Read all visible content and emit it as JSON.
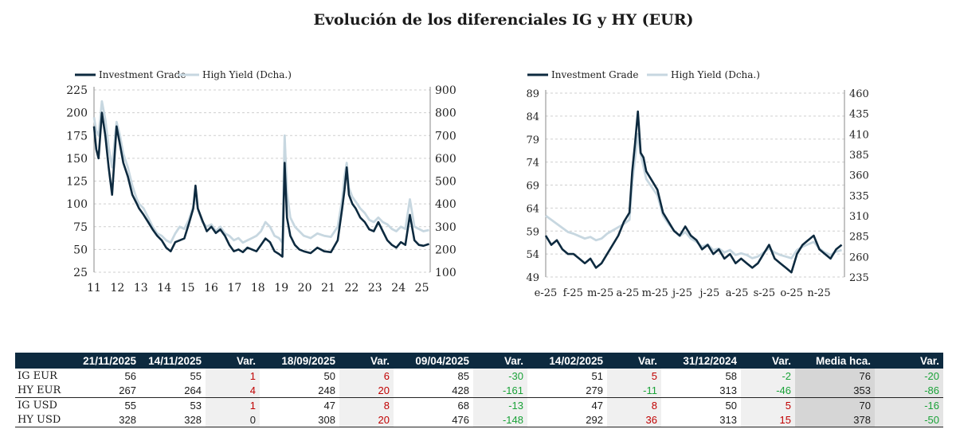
{
  "title": "Evolución de los diferenciales IG y HY (EUR)",
  "colors": {
    "ig": "#0d2a3f",
    "hy": "#c7d7e0",
    "grid": "#cfcfcf",
    "header_bg": "#0d2a3f",
    "positive": "#c00000",
    "negative": "#1aa238"
  },
  "chart_data": [
    {
      "type": "line",
      "legend": [
        "Investment Grade",
        "High Yield (Dcha.)"
      ],
      "legend_position": "top-left",
      "x_ticks": [
        "11",
        "12",
        "13",
        "14",
        "15",
        "16",
        "17",
        "18",
        "19",
        "20",
        "21",
        "22",
        "23",
        "24",
        "25"
      ],
      "xlim": [
        2011,
        2025.9
      ],
      "y_left": {
        "ticks": [
          "225",
          "200",
          "175",
          "150",
          "125",
          "100",
          "75",
          "50",
          "25"
        ],
        "ylim": [
          25,
          225
        ]
      },
      "y_right": {
        "ticks": [
          "900",
          "800",
          "700",
          "600",
          "500",
          "400",
          "300",
          "200",
          "100"
        ],
        "ylim": [
          100,
          900
        ]
      },
      "grid": true,
      "series": [
        {
          "name": "Investment Grade",
          "axis": "left",
          "color": "#0d2a3f",
          "x": [
            2011.0,
            2011.1,
            2011.2,
            2011.35,
            2011.5,
            2011.65,
            2011.8,
            2012.0,
            2012.15,
            2012.3,
            2012.5,
            2012.7,
            2012.9,
            2013.0,
            2013.2,
            2013.4,
            2013.6,
            2013.8,
            2014.0,
            2014.2,
            2014.4,
            2014.6,
            2014.8,
            2015.0,
            2015.2,
            2015.4,
            2015.5,
            2015.6,
            2015.8,
            2016.0,
            2016.2,
            2016.4,
            2016.6,
            2016.8,
            2017.0,
            2017.2,
            2017.4,
            2017.6,
            2017.8,
            2018.0,
            2018.2,
            2018.4,
            2018.6,
            2018.8,
            2019.0,
            2019.2,
            2019.35,
            2019.45,
            2019.55,
            2019.7,
            2019.9,
            2020.1,
            2020.3,
            2020.6,
            2020.9,
            2021.2,
            2021.5,
            2021.8,
            2022.0,
            2022.1,
            2022.2,
            2022.3,
            2022.45,
            2022.6,
            2022.8,
            2023.0,
            2023.2,
            2023.4,
            2023.6,
            2023.8,
            2024.0,
            2024.2,
            2024.4,
            2024.6,
            2024.8,
            2025.0,
            2025.2,
            2025.4,
            2025.6,
            2025.85
          ],
          "values": [
            185,
            160,
            150,
            200,
            175,
            140,
            110,
            185,
            165,
            145,
            130,
            110,
            100,
            95,
            88,
            80,
            72,
            65,
            60,
            52,
            48,
            58,
            60,
            62,
            78,
            95,
            120,
            95,
            82,
            70,
            75,
            68,
            72,
            65,
            55,
            48,
            50,
            47,
            52,
            50,
            48,
            55,
            62,
            58,
            48,
            45,
            42,
            145,
            85,
            65,
            55,
            50,
            48,
            46,
            52,
            48,
            47,
            60,
            95,
            115,
            140,
            110,
            100,
            95,
            85,
            80,
            72,
            70,
            80,
            70,
            60,
            55,
            52,
            58,
            55,
            88,
            60,
            55,
            54,
            56
          ]
        },
        {
          "name": "High Yield (Dcha.)",
          "axis": "right",
          "color": "#c7d7e0",
          "x": [
            2011.0,
            2011.1,
            2011.2,
            2011.35,
            2011.5,
            2011.65,
            2011.8,
            2012.0,
            2012.15,
            2012.3,
            2012.5,
            2012.7,
            2012.9,
            2013.0,
            2013.2,
            2013.4,
            2013.6,
            2013.8,
            2014.0,
            2014.2,
            2014.4,
            2014.6,
            2014.8,
            2015.0,
            2015.2,
            2015.4,
            2015.5,
            2015.6,
            2015.8,
            2016.0,
            2016.2,
            2016.4,
            2016.6,
            2016.8,
            2017.0,
            2017.2,
            2017.4,
            2017.6,
            2017.8,
            2018.0,
            2018.2,
            2018.4,
            2018.6,
            2018.8,
            2019.0,
            2019.2,
            2019.35,
            2019.45,
            2019.55,
            2019.7,
            2019.9,
            2020.1,
            2020.3,
            2020.6,
            2020.9,
            2021.2,
            2021.5,
            2021.8,
            2022.0,
            2022.1,
            2022.2,
            2022.3,
            2022.45,
            2022.6,
            2022.8,
            2023.0,
            2023.2,
            2023.4,
            2023.6,
            2023.8,
            2024.0,
            2024.2,
            2024.4,
            2024.6,
            2024.8,
            2025.0,
            2025.2,
            2025.4,
            2025.6,
            2025.85
          ],
          "values": [
            780,
            720,
            700,
            850,
            770,
            650,
            560,
            760,
            700,
            620,
            560,
            480,
            420,
            400,
            380,
            340,
            300,
            270,
            260,
            240,
            230,
            270,
            300,
            290,
            330,
            390,
            440,
            380,
            320,
            300,
            310,
            280,
            300,
            270,
            260,
            240,
            250,
            230,
            240,
            250,
            260,
            280,
            320,
            300,
            260,
            250,
            230,
            700,
            450,
            340,
            300,
            280,
            260,
            250,
            270,
            260,
            255,
            300,
            420,
            520,
            580,
            470,
            430,
            410,
            380,
            360,
            330,
            320,
            340,
            320,
            310,
            290,
            280,
            300,
            290,
            420,
            300,
            290,
            280,
            285
          ]
        }
      ]
    },
    {
      "type": "line",
      "legend": [
        "Investment Grade",
        "High Yield (Dcha.)"
      ],
      "legend_position": "top-left",
      "x_ticks": [
        "e-25",
        "f-25",
        "m-25",
        "a-25",
        "m-25",
        "j-25",
        "j-25",
        "a-25",
        "s-25",
        "o-25",
        "n-25"
      ],
      "xlim": [
        0,
        10.7
      ],
      "y_left": {
        "ticks": [
          "89",
          "84",
          "79",
          "74",
          "69",
          "64",
          "59",
          "54",
          "49"
        ],
        "ylim": [
          49,
          89
        ]
      },
      "y_right": {
        "ticks": [
          "460",
          "435",
          "410",
          "385",
          "360",
          "335",
          "310",
          "285",
          "260",
          "235"
        ],
        "ylim": [
          235,
          460
        ]
      },
      "grid": true,
      "series": [
        {
          "name": "Investment Grade",
          "axis": "left",
          "color": "#0d2a3f",
          "x": [
            0,
            0.2,
            0.4,
            0.6,
            0.8,
            1.0,
            1.2,
            1.4,
            1.6,
            1.8,
            2.0,
            2.2,
            2.4,
            2.6,
            2.8,
            3.0,
            3.1,
            3.2,
            3.3,
            3.4,
            3.5,
            3.6,
            3.8,
            4.0,
            4.2,
            4.4,
            4.6,
            4.8,
            5.0,
            5.2,
            5.4,
            5.6,
            5.8,
            6.0,
            6.2,
            6.4,
            6.6,
            6.8,
            7.0,
            7.2,
            7.4,
            7.6,
            7.8,
            8.0,
            8.2,
            8.4,
            8.6,
            8.8,
            9.0,
            9.2,
            9.4,
            9.6,
            9.8,
            10.0,
            10.2,
            10.4,
            10.6
          ],
          "values": [
            58,
            56,
            57,
            55,
            54,
            54,
            53,
            52,
            53,
            51,
            52,
            54,
            56,
            58,
            61,
            63,
            72,
            78,
            85,
            76,
            75,
            72,
            70,
            68,
            63,
            61,
            59,
            58,
            60,
            58,
            57,
            55,
            56,
            54,
            55,
            53,
            54,
            52,
            53,
            52,
            51,
            52,
            54,
            56,
            53,
            52,
            51,
            50,
            54,
            56,
            57,
            58,
            55,
            54,
            53,
            55,
            56
          ]
        },
        {
          "name": "High Yield (Dcha.)",
          "axis": "right",
          "color": "#c7d7e0",
          "x": [
            0,
            0.2,
            0.4,
            0.6,
            0.8,
            1.0,
            1.2,
            1.4,
            1.6,
            1.8,
            2.0,
            2.2,
            2.4,
            2.6,
            2.8,
            3.0,
            3.1,
            3.2,
            3.3,
            3.4,
            3.5,
            3.6,
            3.8,
            4.0,
            4.2,
            4.4,
            4.6,
            4.8,
            5.0,
            5.2,
            5.4,
            5.6,
            5.8,
            6.0,
            6.2,
            6.4,
            6.6,
            6.8,
            7.0,
            7.2,
            7.4,
            7.6,
            7.8,
            8.0,
            8.2,
            8.4,
            8.6,
            8.8,
            9.0,
            9.2,
            9.4,
            9.6,
            9.8,
            10.0,
            10.2,
            10.4,
            10.6
          ],
          "values": [
            310,
            305,
            300,
            295,
            290,
            288,
            285,
            282,
            284,
            280,
            282,
            288,
            292,
            296,
            300,
            305,
            350,
            380,
            410,
            385,
            370,
            355,
            345,
            335,
            310,
            300,
            292,
            285,
            290,
            282,
            278,
            272,
            275,
            268,
            270,
            265,
            268,
            262,
            264,
            262,
            258,
            260,
            265,
            270,
            265,
            262,
            260,
            258,
            268,
            272,
            275,
            278,
            270,
            265,
            262,
            266,
            268
          ]
        }
      ]
    }
  ],
  "table": {
    "headers": [
      "",
      "21/11/2025",
      "14/11/2025",
      "Var.",
      "18/09/2025",
      "Var.",
      "09/04/2025",
      "Var.",
      "14/02/2025",
      "Var.",
      "31/12/2024",
      "Var.",
      "Media hca.",
      "Var."
    ],
    "rows": [
      {
        "label": "IG EUR",
        "cells": [
          "56",
          "55",
          "1",
          "50",
          "6",
          "85",
          "-30",
          "51",
          "5",
          "58",
          "-2",
          "76",
          "-20"
        ]
      },
      {
        "label": "HY EUR",
        "cells": [
          "267",
          "264",
          "4",
          "248",
          "20",
          "428",
          "-161",
          "279",
          "-11",
          "313",
          "-46",
          "353",
          "-86"
        ]
      },
      {
        "label": "IG USD",
        "cells": [
          "55",
          "53",
          "1",
          "47",
          "8",
          "68",
          "-13",
          "47",
          "8",
          "50",
          "5",
          "70",
          "-16"
        ]
      },
      {
        "label": "HY USD",
        "cells": [
          "328",
          "328",
          "0",
          "308",
          "20",
          "476",
          "-148",
          "292",
          "36",
          "313",
          "15",
          "378",
          "-50"
        ]
      }
    ]
  }
}
